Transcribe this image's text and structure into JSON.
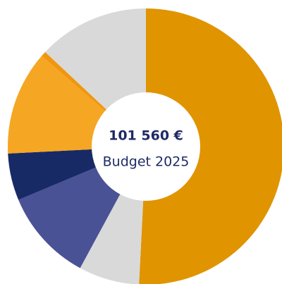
{
  "chart_data": {
    "type": "donut",
    "title": "101 560 €",
    "subtitle": "Budget 2025",
    "categories": [
      null,
      null,
      null,
      null,
      null,
      null,
      null
    ],
    "values": [
      50.8,
      7.1,
      10.8,
      5.5,
      12.2,
      0.6,
      13
    ],
    "colors": [
      "#e09400",
      "#d9d9d9",
      "#4a5296",
      "#182a66",
      "#f5a623",
      "#f0960f",
      "#d9d9d9"
    ]
  }
}
